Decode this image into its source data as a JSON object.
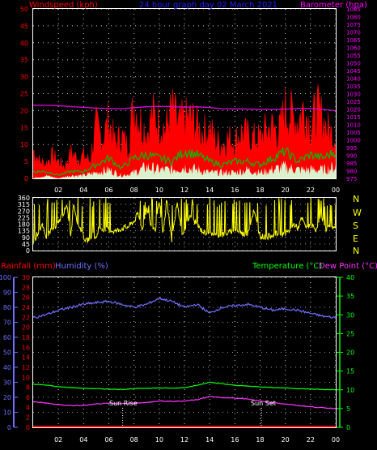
{
  "header": {
    "windspeed_label": "Windspeed (kph)",
    "title": "24 hour graph day  02 March 2021",
    "barometer_label": "Barometer (hpa)"
  },
  "lower_header": {
    "rainfall_label": "Rainfall (mm)",
    "humidity_label": "Humidity (%)",
    "temperature_label": "Temperature (°C)",
    "dewpoint_label": "Dew Point (°C)"
  },
  "compass": [
    "N",
    "W",
    "S",
    "E",
    "N"
  ],
  "annotations": {
    "sun_rise": "Sun Rise",
    "sun_set": "Sun Set"
  },
  "colors": {
    "background": "#000000",
    "grid": "#ffffff",
    "wind_gust": "#ff0000",
    "wind_avg": "#00c000",
    "wind_lull": "#d8ffd8",
    "barometer": "#e000e0",
    "direction": "#ffff00",
    "humidity": "#6f6fff",
    "temperature": "#00ff00",
    "dewpoint": "#ff33ff",
    "rainfall": "#ff0000",
    "title": "#2020ff",
    "left_axis": "#ff0000",
    "right_axis": "#ff00ff",
    "hours": "#ffffff"
  },
  "chart_data": [
    {
      "type": "line",
      "name": "wind-baro-panel",
      "x_ticks": [
        "02",
        "04",
        "06",
        "08",
        "10",
        "12",
        "14",
        "16",
        "18",
        "20",
        "22",
        "00"
      ],
      "x_tick_hours": [
        2,
        4,
        6,
        8,
        10,
        12,
        14,
        16,
        18,
        20,
        22,
        24
      ],
      "xlim": [
        0,
        24
      ],
      "ylim_left": [
        0,
        50
      ],
      "ylim_right": [
        975,
        1085
      ],
      "left_ticks": [
        0,
        5,
        10,
        15,
        20,
        25,
        30,
        35,
        40,
        45,
        50
      ],
      "right_ticks": [
        975,
        980,
        985,
        990,
        995,
        1000,
        1005,
        1010,
        1015,
        1020,
        1025,
        1030,
        1035,
        1040,
        1045,
        1050,
        1055,
        1060,
        1065,
        1070,
        1075,
        1080,
        1085
      ],
      "barometer": {
        "x": [
          0,
          1,
          2,
          3,
          4,
          5,
          6,
          7,
          8,
          9,
          10,
          11,
          12,
          13,
          14,
          15,
          16,
          17,
          18,
          19,
          20,
          21,
          22,
          23,
          24
        ],
        "y": [
          1022.5,
          1022.4,
          1022.2,
          1021.6,
          1021.1,
          1020.6,
          1020.3,
          1020.2,
          1020.9,
          1021.5,
          1021.8,
          1021.6,
          1021.2,
          1021.4,
          1021.0,
          1020.2,
          1020.1,
          1020.0,
          1019.9,
          1019.8,
          1020.0,
          1020.3,
          1020.4,
          1019.8,
          1018.9
        ]
      },
      "gust": {
        "x": [
          0,
          0.5,
          1,
          1.5,
          2,
          2.5,
          3,
          3.5,
          4,
          4.5,
          5,
          5.5,
          6,
          6.5,
          7,
          7.5,
          8,
          8.5,
          9,
          9.5,
          10,
          10.5,
          11,
          11.5,
          12,
          12.5,
          13,
          13.5,
          14,
          14.5,
          15,
          15.5,
          16,
          16.5,
          17,
          17.5,
          18,
          18.5,
          19,
          19.5,
          20,
          20.5,
          21,
          21.5,
          22,
          22.5,
          23,
          23.5,
          24
        ],
        "y": [
          10,
          6,
          5,
          8,
          6,
          4,
          9,
          7,
          8,
          6,
          18,
          14,
          20,
          12,
          15,
          11,
          26,
          20,
          16,
          22,
          20,
          17,
          24,
          19,
          20,
          21,
          18,
          16,
          17,
          13,
          12,
          14,
          13,
          16,
          15,
          14,
          14,
          17,
          18,
          16,
          24,
          22,
          20,
          25,
          18,
          24,
          20,
          16,
          15
        ]
      },
      "average": {
        "x": [
          0,
          1,
          2,
          3,
          4,
          5,
          6,
          7,
          8,
          9,
          10,
          11,
          12,
          13,
          14,
          15,
          16,
          17,
          18,
          19,
          20,
          21,
          22,
          23,
          24
        ],
        "y": [
          2,
          2,
          1,
          2,
          2,
          4,
          6,
          3,
          6,
          7,
          6,
          5,
          8,
          7,
          5,
          4,
          5,
          5,
          4,
          6,
          8,
          5,
          7,
          6,
          8
        ]
      },
      "lull": {
        "x": [
          0,
          1,
          2,
          3,
          4,
          5,
          6,
          7,
          8,
          9,
          10,
          11,
          12,
          13,
          14,
          15,
          16,
          17,
          18,
          19,
          20,
          21,
          22,
          23,
          24
        ],
        "y": [
          0,
          1,
          0,
          1,
          1,
          2,
          3,
          1,
          2,
          4,
          3,
          3,
          4,
          3,
          2,
          2,
          2,
          3,
          2,
          3,
          4,
          3,
          3,
          3,
          4
        ]
      }
    },
    {
      "type": "scatter",
      "name": "wind-direction-panel",
      "x_ticks": [
        "02",
        "04",
        "06",
        "08",
        "10",
        "12",
        "14",
        "16",
        "18",
        "20",
        "22",
        "00"
      ],
      "xlim": [
        0,
        24
      ],
      "ylim": [
        0,
        360
      ],
      "left_ticks": [
        0,
        45,
        90,
        135,
        180,
        225,
        270,
        315,
        360
      ],
      "x": [
        0,
        0.3,
        0.7,
        1,
        1.4,
        1.8,
        2.2,
        2.7,
        3,
        3.2,
        3.5,
        3.9,
        4.2,
        4.7,
        5,
        5.2,
        5.5,
        6,
        6.5,
        7,
        7.5,
        8,
        8.3,
        8.7,
        9,
        9.3,
        9.7,
        10,
        10.3,
        10.6,
        11,
        11.4,
        11.8,
        12,
        12.4,
        12.8,
        13.2,
        13.6,
        14,
        14.5,
        15,
        15.5,
        16,
        16.3,
        16.7,
        17,
        17.5,
        18,
        18.5,
        19,
        19.5,
        20,
        20.3,
        20.7,
        21,
        21.3,
        21.7,
        22,
        22.4,
        22.8,
        23.2,
        23.6,
        24
      ],
      "y": [
        45,
        110,
        170,
        90,
        140,
        150,
        230,
        300,
        100,
        330,
        200,
        120,
        60,
        110,
        80,
        160,
        150,
        140,
        130,
        150,
        160,
        200,
        250,
        140,
        300,
        180,
        140,
        350,
        100,
        340,
        60,
        330,
        120,
        140,
        230,
        200,
        150,
        120,
        130,
        100,
        110,
        120,
        150,
        130,
        110,
        120,
        270,
        100,
        90,
        110,
        115,
        120,
        130,
        180,
        150,
        220,
        150,
        190,
        140,
        240,
        150,
        160,
        150
      ]
    },
    {
      "type": "line",
      "name": "temp-humidity-panel",
      "x_ticks": [
        "02",
        "04",
        "06",
        "08",
        "10",
        "12",
        "14",
        "16",
        "18",
        "20",
        "22",
        "00"
      ],
      "xlim": [
        0,
        24
      ],
      "humidity_ticks": [
        0,
        10,
        20,
        30,
        40,
        50,
        60,
        70,
        80,
        90,
        100
      ],
      "rain_ticks": [
        0,
        2,
        4,
        6,
        8,
        10,
        12,
        14,
        16,
        18,
        20,
        22,
        24,
        26,
        28,
        30
      ],
      "temp_ticks": [
        0,
        5,
        10,
        15,
        20,
        25,
        30,
        35,
        40
      ],
      "humidity": {
        "x": [
          0,
          1,
          2,
          3,
          4,
          5,
          6,
          7,
          8,
          9,
          10,
          11,
          12,
          13,
          14,
          15,
          16,
          17,
          18,
          19,
          20,
          21,
          22,
          23,
          24
        ],
        "y": [
          73,
          75,
          78,
          80,
          82,
          83,
          84,
          82,
          80,
          82,
          86,
          84,
          80,
          82,
          76,
          80,
          81,
          82,
          80,
          78,
          79,
          78,
          76,
          74,
          73
        ]
      },
      "temperature": {
        "x": [
          0,
          1,
          2,
          3,
          4,
          5,
          6,
          7,
          8,
          9,
          10,
          11,
          12,
          13,
          14,
          15,
          16,
          17,
          18,
          19,
          20,
          21,
          22,
          23,
          24
        ],
        "y": [
          11.5,
          11.3,
          10.8,
          10.6,
          10.4,
          10.3,
          10.2,
          10.1,
          10.3,
          10.4,
          10.5,
          10.4,
          10.6,
          11.2,
          12.0,
          11.6,
          11.2,
          11.0,
          10.8,
          10.6,
          10.5,
          10.3,
          10.2,
          10.1,
          10.0
        ]
      },
      "dewpoint": {
        "x": [
          0,
          1,
          2,
          3,
          4,
          5,
          6,
          7,
          8,
          9,
          10,
          11,
          12,
          13,
          14,
          15,
          16,
          17,
          18,
          19,
          20,
          21,
          22,
          23,
          24
        ],
        "y": [
          6.8,
          6.5,
          6.0,
          5.8,
          5.8,
          6.2,
          6.4,
          6.3,
          6.5,
          6.6,
          7.0,
          6.9,
          7.0,
          7.4,
          8.2,
          7.9,
          7.8,
          7.6,
          7.0,
          6.6,
          6.2,
          5.8,
          5.5,
          5.2,
          5.0
        ]
      },
      "rainfall": {
        "x": [
          0,
          24
        ],
        "y": [
          0,
          0
        ]
      },
      "sun_rise_hour": 7.1,
      "sun_set_hour": 18.1
    }
  ]
}
